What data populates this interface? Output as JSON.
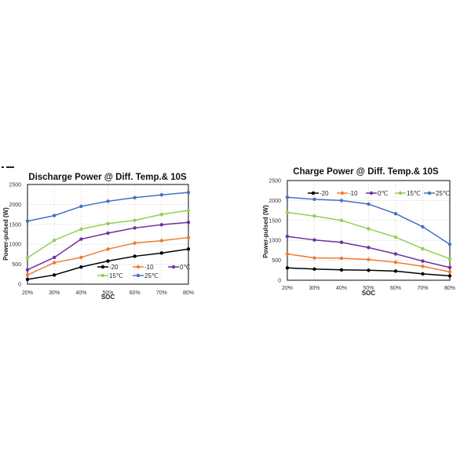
{
  "chart_data": [
    {
      "type": "line",
      "title": "Discharge Power @ Diff. Temp.& 10S",
      "xlabel": "SOC",
      "ylabel": "Power-pulsed  (W)",
      "categories": [
        "20%",
        "30%",
        "40%",
        "50%",
        "60%",
        "70%",
        "80%"
      ],
      "ylim": [
        0,
        2500
      ],
      "yticks": [
        0,
        500,
        1000,
        1500,
        2000,
        2500
      ],
      "grid": true,
      "legend_position": "inside-bottom-right",
      "series": [
        {
          "name": "-20",
          "color": "#000000",
          "values": [
            120,
            230,
            430,
            580,
            700,
            780,
            880
          ]
        },
        {
          "name": "-10",
          "color": "#ED7D31",
          "values": [
            230,
            540,
            670,
            880,
            1030,
            1090,
            1170
          ]
        },
        {
          "name": "0℃",
          "color": "#7030A0",
          "values": [
            360,
            670,
            1130,
            1280,
            1410,
            1490,
            1550
          ]
        },
        {
          "name": "15℃",
          "color": "#92D050",
          "values": [
            660,
            1100,
            1380,
            1520,
            1600,
            1750,
            1850
          ]
        },
        {
          "name": "25℃",
          "color": "#4472C4",
          "values": [
            1580,
            1720,
            1950,
            2080,
            2170,
            2240,
            2300
          ]
        }
      ]
    },
    {
      "type": "line",
      "title": "Charge Power @ Diff. Temp.& 10S",
      "xlabel": "SOC",
      "ylabel": "Power-pulsed  (W)",
      "categories": [
        "20%",
        "30%",
        "40%",
        "50%",
        "60%",
        "70%",
        "80%"
      ],
      "ylim": [
        0,
        2500
      ],
      "yticks": [
        0,
        500,
        1000,
        1500,
        2000,
        2500
      ],
      "grid": true,
      "legend_position": "inside-top",
      "series": [
        {
          "name": "-20",
          "color": "#000000",
          "values": [
            310,
            280,
            260,
            250,
            230,
            160,
            110
          ]
        },
        {
          "name": "-10",
          "color": "#ED7D31",
          "values": [
            660,
            560,
            550,
            520,
            450,
            350,
            210
          ]
        },
        {
          "name": "0℃",
          "color": "#7030A0",
          "values": [
            1100,
            1010,
            950,
            820,
            660,
            480,
            320
          ]
        },
        {
          "name": "15℃",
          "color": "#92D050",
          "values": [
            1700,
            1610,
            1500,
            1290,
            1080,
            790,
            540
          ]
        },
        {
          "name": "25℃",
          "color": "#4472C4",
          "values": [
            2080,
            2030,
            2000,
            1910,
            1670,
            1340,
            900
          ]
        }
      ]
    }
  ]
}
